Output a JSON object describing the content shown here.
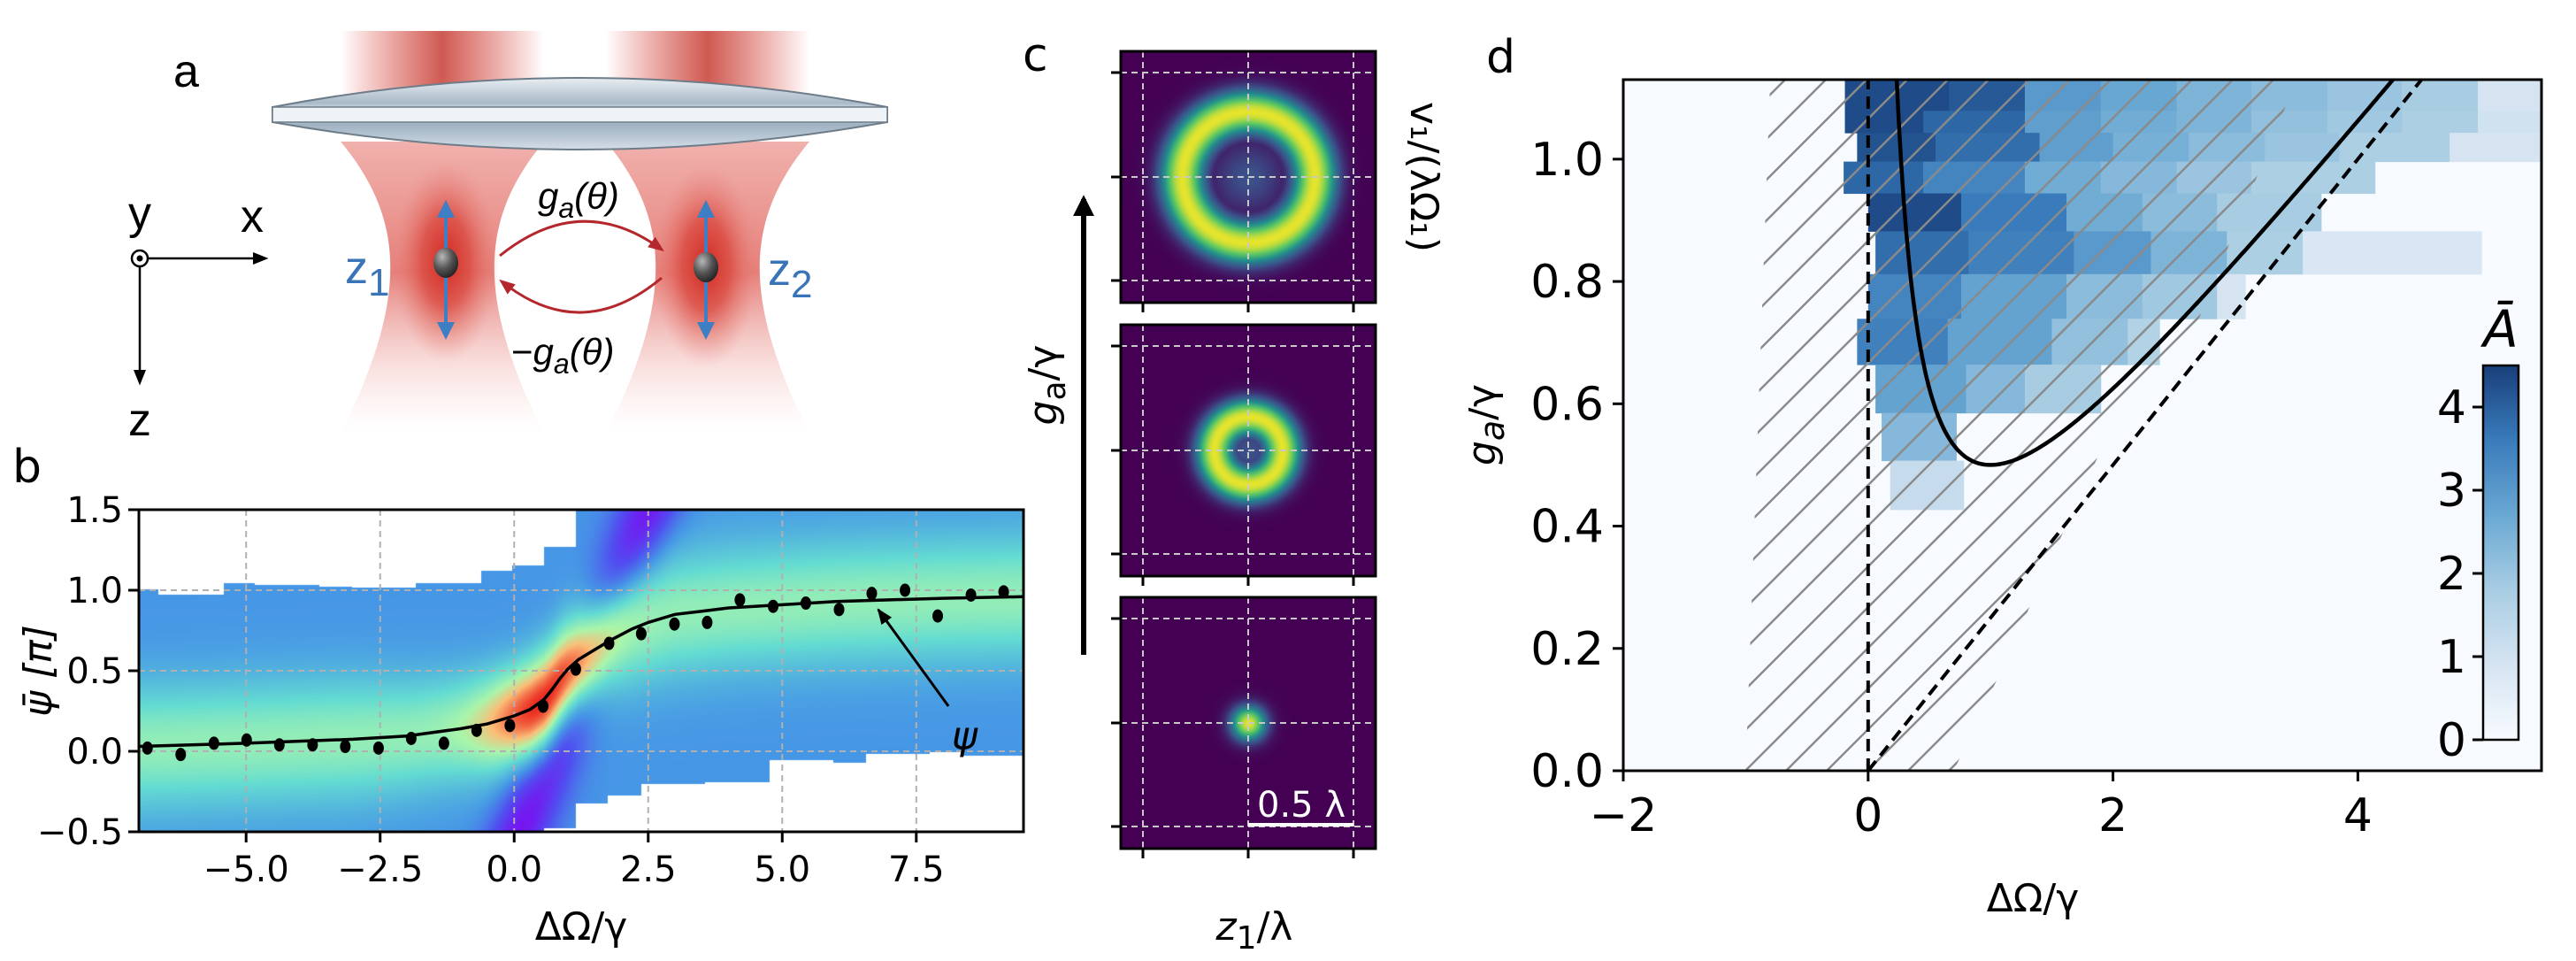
{
  "figure": {
    "panels": [
      "a",
      "b",
      "c",
      "d"
    ]
  },
  "panel_a": {
    "letter": "a",
    "axes_labels": {
      "y": "y",
      "x": "x",
      "z": "z"
    },
    "particle_labels": {
      "z1_main": "z",
      "z1_sub": "1",
      "z2_main": "z",
      "z2_sub": "2"
    },
    "coupling_forward": {
      "main": "g",
      "sub": "a",
      "arg": "(θ)"
    },
    "coupling_backward": {
      "prefix": "−",
      "main": "g",
      "sub": "a",
      "arg": "(θ)"
    },
    "colors": {
      "beam": "#d9342b",
      "particle_arrow": "#3d7fc4",
      "coupling_arrow": "#b3272d",
      "label_blue": "#3a74b8"
    }
  },
  "chart_data": [
    {
      "id": "b",
      "type": "heatmap",
      "letter": "b",
      "title": "",
      "xlabel": "ΔΩ/γ",
      "ylabel": "ψ̄ [π]",
      "xlim": [
        -7.0,
        9.5
      ],
      "ylim": [
        -0.5,
        1.5
      ],
      "xticks": [
        -5.0,
        -2.5,
        0.0,
        2.5,
        5.0,
        7.5
      ],
      "xtick_labels": [
        "−5.0",
        "−2.5",
        "0.0",
        "2.5",
        "5.0",
        "7.5"
      ],
      "yticks": [
        -0.5,
        0.0,
        0.5,
        1.0,
        1.5
      ],
      "ytick_labels": [
        "−0.5",
        "0.0",
        "0.5",
        "1.0",
        "1.5"
      ],
      "grid": true,
      "colormap": "rainbow",
      "mask_top": [
        [
          -7.0,
          -6.65,
          1.01
        ],
        [
          -6.65,
          -5.43,
          0.976
        ],
        [
          -5.43,
          -4.84,
          1.044
        ],
        [
          -4.84,
          -3.64,
          1.037
        ],
        [
          -3.64,
          -3.04,
          1.026
        ],
        [
          -3.04,
          -1.84,
          1.018
        ],
        [
          -1.84,
          -0.63,
          1.044
        ],
        [
          -0.63,
          -0.04,
          1.125
        ],
        [
          -0.04,
          0.55,
          1.157
        ],
        [
          0.55,
          1.15,
          1.271
        ],
        [
          1.15,
          9.5,
          1.5
        ]
      ],
      "mask_bottom": [
        [
          -7.0,
          0.55,
          -0.5
        ],
        [
          0.55,
          1.15,
          -0.478
        ],
        [
          1.15,
          1.74,
          -0.324
        ],
        [
          1.74,
          2.36,
          -0.27
        ],
        [
          2.36,
          3.55,
          -0.2
        ],
        [
          3.55,
          4.76,
          -0.187
        ],
        [
          4.76,
          5.94,
          -0.053
        ],
        [
          5.94,
          6.56,
          -0.071
        ],
        [
          6.56,
          7.74,
          -0.016
        ],
        [
          7.74,
          8.36,
          0.0
        ],
        [
          8.36,
          9.5,
          -0.026
        ]
      ],
      "series": [
        {
          "name": "measured",
          "style": "scatter",
          "x": [
            -6.84,
            -6.22,
            -5.6,
            -4.99,
            -4.38,
            -3.76,
            -3.15,
            -2.53,
            -1.92,
            -1.31,
            -0.7,
            -0.08,
            0.54,
            1.15,
            1.77,
            2.37,
            2.99,
            3.6,
            4.21,
            4.83,
            5.44,
            6.06,
            6.67,
            7.29,
            7.9,
            8.52,
            9.13
          ],
          "y": [
            0.02,
            -0.02,
            0.05,
            0.07,
            0.04,
            0.04,
            0.03,
            0.02,
            0.08,
            0.05,
            0.13,
            0.16,
            0.28,
            0.51,
            0.67,
            0.73,
            0.79,
            0.8,
            0.94,
            0.9,
            0.92,
            0.88,
            0.98,
            1.0,
            0.84,
            0.97,
            0.99
          ]
        },
        {
          "name": "ψ",
          "style": "line",
          "x": [
            -7.0,
            -5.0,
            -3.0,
            -2.0,
            -1.0,
            -0.5,
            0.0,
            0.3,
            0.55,
            0.7,
            0.85,
            1.0,
            1.2,
            1.5,
            1.8,
            2.2,
            2.5,
            3.0,
            3.5,
            4.0,
            5.0,
            6.0,
            7.0,
            8.0,
            9.5
          ],
          "y": [
            0.03,
            0.05,
            0.075,
            0.095,
            0.14,
            0.17,
            0.22,
            0.26,
            0.32,
            0.38,
            0.45,
            0.51,
            0.57,
            0.63,
            0.69,
            0.76,
            0.8,
            0.85,
            0.87,
            0.89,
            0.91,
            0.93,
            0.94,
            0.95,
            0.96
          ]
        }
      ],
      "annotation": {
        "text": "ψ",
        "xy": [
          6.79,
          0.88
        ],
        "xytext": [
          8.1,
          0.28
        ],
        "label_pos": [
          8.4,
          0.08
        ]
      }
    },
    {
      "id": "c",
      "type": "heatmap",
      "letter": "c",
      "xlabel_main": "z",
      "xlabel_sub": "1",
      "xlabel_rest": "/λ",
      "ylabel_right": "v₁/(λΩ₁)",
      "arrow_label_main": "g",
      "arrow_label_sub": "a",
      "arrow_label_rest": "/γ",
      "colormap": "viridis",
      "scale_bar": "0.5 λ",
      "subplots": [
        {
          "shape": "ring",
          "ring_radius": 0.62,
          "ring_width": 0.2
        },
        {
          "shape": "ring",
          "ring_radius": 0.32,
          "ring_width": 0.17
        },
        {
          "shape": "spot",
          "ring_radius": 0.0,
          "ring_width": 0.16
        }
      ]
    },
    {
      "id": "d",
      "type": "heatmap",
      "letter": "d",
      "xlabel": "ΔΩ/γ",
      "ylabel_main": "g",
      "ylabel_sub": "a",
      "ylabel_rest": "/γ",
      "xlim": [
        -2,
        5.5
      ],
      "ylim": [
        0.0,
        1.13
      ],
      "xticks": [
        -2,
        0,
        2,
        4
      ],
      "xtick_labels": [
        "−2",
        "0",
        "2",
        "4"
      ],
      "yticks": [
        0.0,
        0.2,
        0.4,
        0.6,
        0.8,
        1.0
      ],
      "ytick_labels": [
        "0.0",
        "0.2",
        "0.4",
        "0.6",
        "0.8",
        "1.0"
      ],
      "colormap": "Blues",
      "colorbar": {
        "label": "Ā",
        "range": [
          0,
          4.5
        ],
        "ticks": [
          0,
          1,
          2,
          3,
          4
        ],
        "tick_labels": [
          "0",
          "1",
          "2",
          "3",
          "4"
        ]
      },
      "cells": [
        {
          "y": [
            1.079,
            1.13
          ],
          "x": [
            -0.19,
            0.66,
            1.28,
            1.9,
            2.52,
            3.13,
            3.75,
            4.36,
            4.98,
            5.5
          ],
          "v": [
            4.3,
            4.1,
            3.0,
            2.7,
            2.4,
            2.2,
            2.0,
            1.8,
            0.9
          ]
        },
        {
          "y": [
            1.043,
            1.079
          ],
          "x": [
            -0.19,
            0.45,
            1.28,
            1.9,
            2.52,
            3.13,
            3.75,
            4.36,
            4.98,
            5.5
          ],
          "v": [
            4.3,
            3.9,
            2.9,
            2.6,
            2.4,
            2.1,
            1.9,
            1.7,
            1.0
          ]
        },
        {
          "y": [
            0.996,
            1.043
          ],
          "x": [
            -0.09,
            0.55,
            1.4,
            2.0,
            2.62,
            3.24,
            3.85,
            4.75,
            5.51
          ],
          "v": [
            4.2,
            3.8,
            2.9,
            2.5,
            2.2,
            2.0,
            1.7,
            0.9
          ]
        },
        {
          "y": [
            0.944,
            0.996
          ],
          "x": [
            -0.2,
            0.45,
            1.28,
            1.9,
            2.52,
            3.13,
            4.14
          ],
          "v": [
            3.9,
            3.4,
            2.6,
            2.3,
            2.0,
            1.7
          ]
        },
        {
          "y": [
            0.882,
            0.944
          ],
          "x": [
            0.0,
            0.76,
            1.62,
            2.24,
            2.85,
            3.7
          ],
          "v": [
            4.3,
            3.6,
            2.6,
            2.2,
            1.8
          ]
        },
        {
          "y": [
            0.812,
            0.882
          ],
          "x": [
            0.06,
            0.82,
            1.68,
            2.31,
            2.93,
            3.55,
            5.01
          ],
          "v": [
            3.8,
            3.5,
            3.0,
            2.4,
            1.7,
            0.8
          ]
        },
        {
          "y": [
            0.739,
            0.812
          ],
          "x": [
            0.0,
            0.76,
            1.62,
            2.24,
            2.85,
            3.08
          ],
          "v": [
            3.4,
            2.8,
            2.2,
            1.9,
            0.9
          ]
        },
        {
          "y": [
            0.664,
            0.739
          ],
          "x": [
            -0.09,
            0.65,
            1.5,
            2.12,
            2.38
          ],
          "v": [
            3.5,
            2.8,
            2.1,
            1.6
          ]
        },
        {
          "y": [
            0.585,
            0.664
          ],
          "x": [
            0.06,
            0.8,
            1.28,
            1.9
          ],
          "v": [
            2.8,
            2.3,
            1.8
          ]
        },
        {
          "y": [
            0.507,
            0.585
          ],
          "x": [
            0.11,
            0.72
          ],
          "v": [
            2.3
          ]
        },
        {
          "y": [
            0.427,
            0.507
          ],
          "x": [
            0.18,
            0.78
          ],
          "v": [
            1.2
          ]
        }
      ],
      "hatch_region": [
        [
          -1.0,
          0.0
        ],
        [
          -0.8,
          1.13
        ],
        [
          3.5,
          1.13
        ],
        [
          2.5,
          0.64
        ],
        [
          1.96,
          0.55
        ],
        [
          1.41,
          0.31
        ],
        [
          1.15,
          0.19
        ],
        [
          0.84,
          0.06
        ],
        [
          0.7,
          0.0
        ]
      ],
      "lines": [
        {
          "name": "threshold-curve",
          "style": "solid",
          "formula": "(x + 1/x)/4",
          "x_range": [
            0.23,
            4.25
          ]
        },
        {
          "name": "vertical-dashed",
          "style": "dashed",
          "x": [
            0,
            0
          ],
          "y": [
            0,
            1.13
          ]
        },
        {
          "name": "diagonal-dashed",
          "style": "dashed",
          "x": [
            0,
            4.52
          ],
          "y": [
            0,
            1.13
          ]
        }
      ]
    }
  ]
}
